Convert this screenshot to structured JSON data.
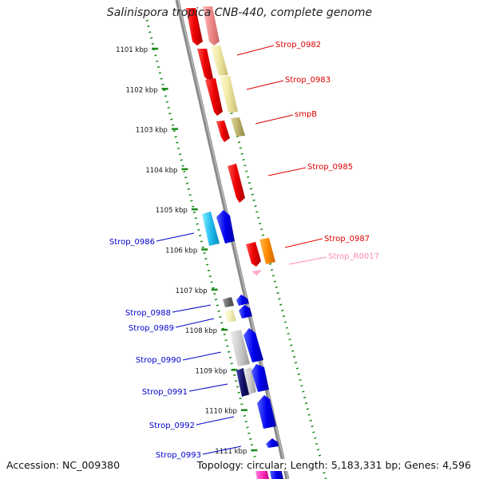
{
  "title": "Salinispora tropica CNB-440, complete genome",
  "accession_label": "Accession: NC_009380",
  "topology_label": "Topology: circular; Length: 5,183,331 bp; Genes: 4,596",
  "ticks": [
    {
      "label": "1101 kbp"
    },
    {
      "label": "1102 kbp"
    },
    {
      "label": "1103 kbp"
    },
    {
      "label": "1104 kbp"
    },
    {
      "label": "1105 kbp"
    },
    {
      "label": "1106 kbp"
    },
    {
      "label": "1107 kbp"
    },
    {
      "label": "1108 kbp"
    },
    {
      "label": "1109 kbp"
    },
    {
      "label": "1110 kbp"
    },
    {
      "label": "1111 kbp"
    }
  ],
  "gene_labels": [
    {
      "name": "Strop_0982",
      "strand": "forward",
      "color": "#dd0000"
    },
    {
      "name": "Strop_0983",
      "strand": "forward",
      "color": "#dd0000"
    },
    {
      "name": "smpB",
      "strand": "forward",
      "color": "#dd0000"
    },
    {
      "name": "Strop_0985",
      "strand": "forward",
      "color": "#dd0000"
    },
    {
      "name": "Strop_0987",
      "strand": "forward",
      "color": "#dd0000"
    },
    {
      "name": "Strop_R0017",
      "strand": "forward",
      "color": "#ff88bb"
    },
    {
      "name": "Strop_0986",
      "strand": "reverse",
      "color": "#0000cc"
    },
    {
      "name": "Strop_0988",
      "strand": "reverse",
      "color": "#0000cc"
    },
    {
      "name": "Strop_0989",
      "strand": "reverse",
      "color": "#0000cc"
    },
    {
      "name": "Strop_0990",
      "strand": "reverse",
      "color": "#0000cc"
    },
    {
      "name": "Strop_0991",
      "strand": "reverse",
      "color": "#0000cc"
    },
    {
      "name": "Strop_0992",
      "strand": "reverse",
      "color": "#0000cc"
    },
    {
      "name": "Strop_0993",
      "strand": "reverse",
      "color": "#0000cc"
    }
  ],
  "colors": {
    "backbone": "#888888",
    "tick_dots": "#1a8a1a",
    "forward_label": "#dd0000",
    "reverse_label": "#0000cc",
    "rrna_label": "#ff88bb"
  }
}
